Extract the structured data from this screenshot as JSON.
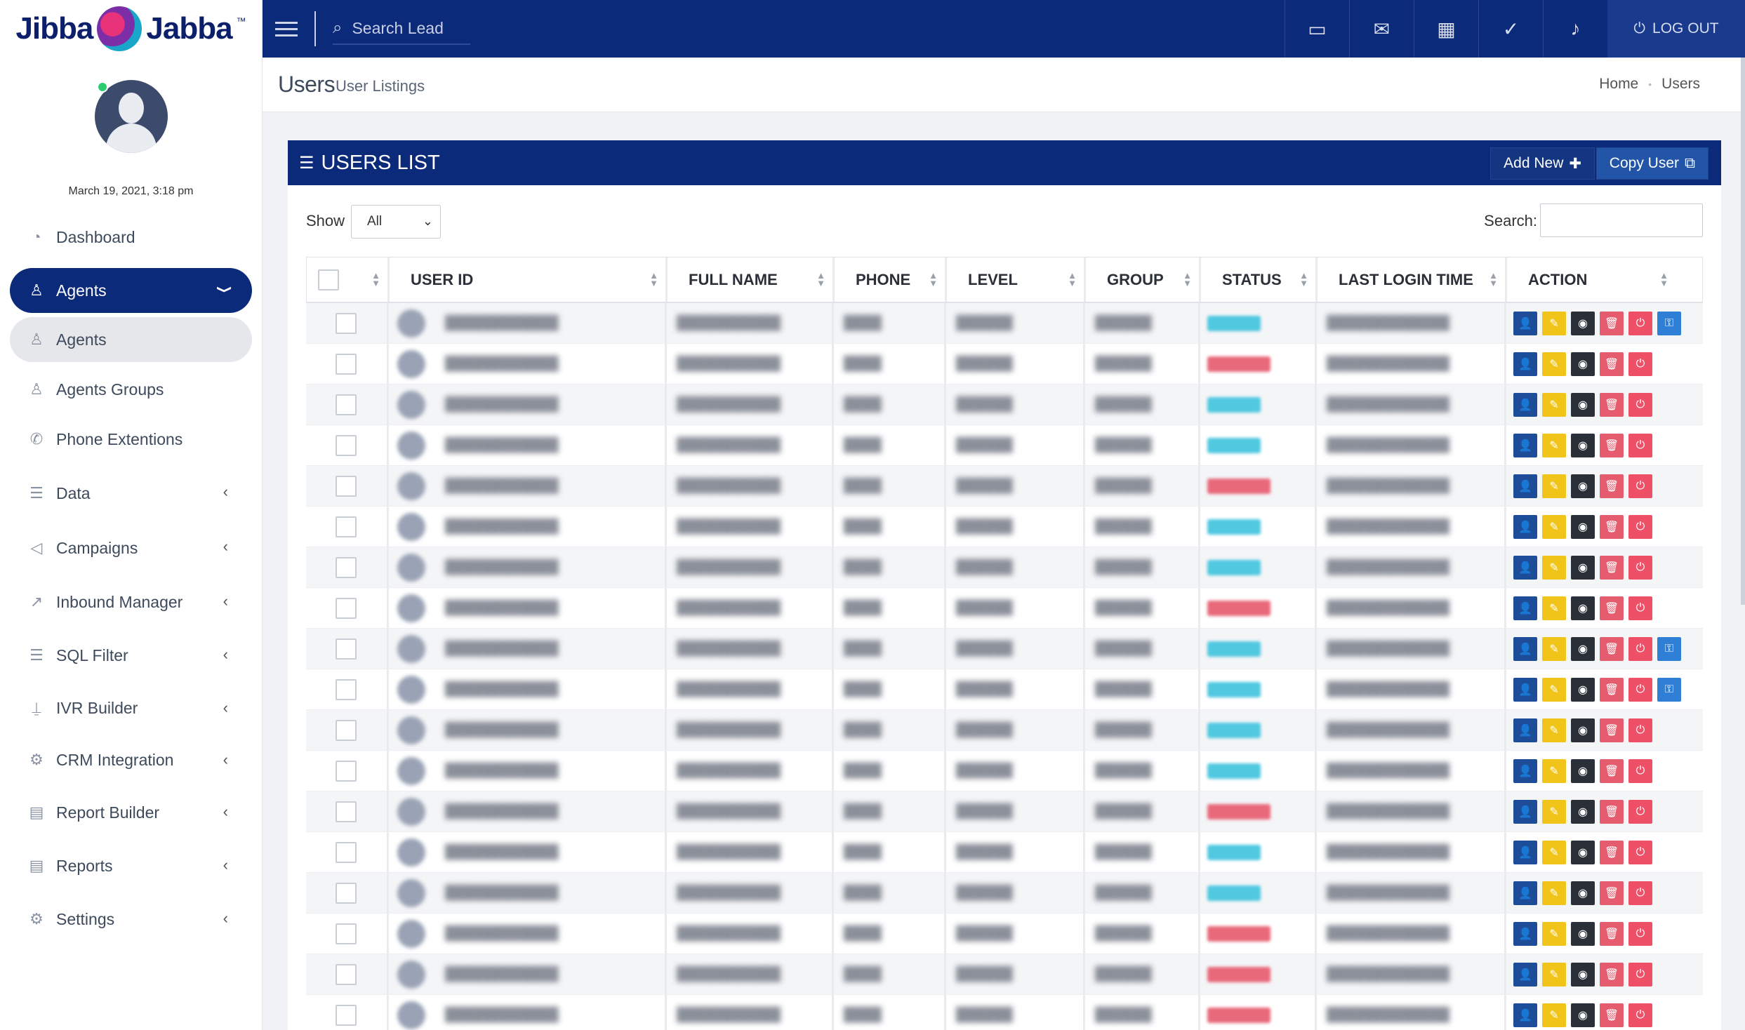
{
  "app": {
    "logo_left": "Jibba",
    "logo_right": "Jabba",
    "logo_tm": "™"
  },
  "user": {
    "datetime": "March 19, 2021, 3:18 pm"
  },
  "sidebar": {
    "items": [
      {
        "label": "Dashboard",
        "icon": "dashboard-icon",
        "has_chevron": false
      },
      {
        "label": "Agents",
        "icon": "user-icon",
        "has_chevron": true,
        "active": true
      },
      {
        "label": "Agents",
        "icon": "user-icon",
        "sub": true
      },
      {
        "label": "Agents Groups",
        "icon": "users-icon",
        "sub": true
      },
      {
        "label": "Phone Extentions",
        "icon": "phone-icon",
        "sub": true
      },
      {
        "label": "Data",
        "icon": "database-icon",
        "has_chevron": true
      },
      {
        "label": "Campaigns",
        "icon": "megaphone-icon",
        "has_chevron": true
      },
      {
        "label": "Inbound Manager",
        "icon": "chart-line-icon",
        "has_chevron": true
      },
      {
        "label": "SQL Filter",
        "icon": "database-icon",
        "has_chevron": true
      },
      {
        "label": "IVR Builder",
        "icon": "microphone-icon",
        "has_chevron": true
      },
      {
        "label": "CRM Integration",
        "icon": "gear-icon",
        "has_chevron": true
      },
      {
        "label": "Report Builder",
        "icon": "document-icon",
        "has_chevron": true
      },
      {
        "label": "Reports",
        "icon": "report-icon",
        "has_chevron": true
      },
      {
        "label": "Settings",
        "icon": "gear-icon",
        "has_chevron": true
      }
    ]
  },
  "topbar": {
    "search_placeholder": "Search Lead",
    "icons": [
      "chat-icon",
      "mail-icon",
      "grid-icon",
      "check-circle-icon",
      "microphone-icon"
    ],
    "logout_label": "LOG OUT"
  },
  "page": {
    "title": "Users",
    "subtitle": "User Listings",
    "breadcrumb": [
      "Home",
      "Users"
    ]
  },
  "card": {
    "title": "USERS LIST",
    "add_new_label": "Add New",
    "copy_user_label": "Copy User"
  },
  "controls": {
    "show_label": "Show",
    "show_value": "All",
    "search_label": "Search:",
    "search_value": ""
  },
  "table": {
    "columns": [
      "USER ID",
      "FULL NAME",
      "PHONE",
      "LEVEL",
      "GROUP",
      "STATUS",
      "LAST LOGIN TIME",
      "ACTION"
    ],
    "rows": [
      {
        "status": "active",
        "admin": true
      },
      {
        "status": "inactive",
        "admin": false
      },
      {
        "status": "active",
        "admin": false
      },
      {
        "status": "active",
        "admin": false
      },
      {
        "status": "inactive",
        "admin": false
      },
      {
        "status": "active",
        "admin": false
      },
      {
        "status": "active",
        "admin": false
      },
      {
        "status": "inactive",
        "admin": false
      },
      {
        "status": "active",
        "admin": true
      },
      {
        "status": "active",
        "admin": true
      },
      {
        "status": "active",
        "admin": false
      },
      {
        "status": "active",
        "admin": false
      },
      {
        "status": "inactive",
        "admin": false
      },
      {
        "status": "active",
        "admin": false
      },
      {
        "status": "active",
        "admin": false
      },
      {
        "status": "inactive",
        "admin": false
      },
      {
        "status": "inactive",
        "admin": false
      },
      {
        "status": "inactive",
        "admin": false
      }
    ]
  },
  "colors": {
    "navy": "#0b2a7a",
    "active_status": "#4fc8e0",
    "inactive_status": "#e8697a",
    "edit": "#f0c419",
    "delete": "#e45c6e"
  }
}
